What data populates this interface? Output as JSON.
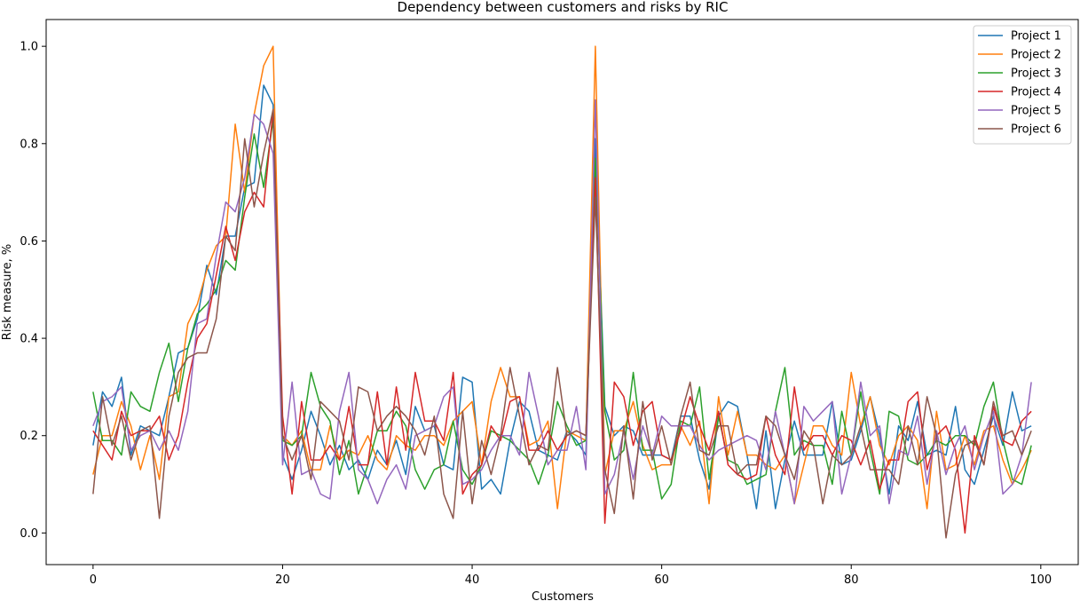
{
  "chart_data": {
    "type": "line",
    "title": "Dependency between customers and risks by RIC",
    "xlabel": "Customers",
    "ylabel": "Risk measure, %",
    "xlim": [
      -4.95,
      103.95
    ],
    "ylim": [
      -0.065,
      1.055
    ],
    "xticks": [
      0,
      20,
      40,
      60,
      80,
      100
    ],
    "yticks": [
      0.0,
      0.2,
      0.4,
      0.6,
      0.8,
      1.0
    ],
    "xtick_labels": [
      "0",
      "20",
      "40",
      "60",
      "80",
      "100"
    ],
    "ytick_labels": [
      "0.0",
      "0.2",
      "0.4",
      "0.6",
      "0.8",
      "1.0"
    ],
    "grid": false,
    "legend_position": "top-right",
    "series": [
      {
        "name": "Project 1",
        "color": "#1f77b4",
        "values": [
          0.18,
          0.29,
          0.26,
          0.32,
          0.16,
          0.22,
          0.21,
          0.2,
          0.28,
          0.37,
          0.38,
          0.44,
          0.55,
          0.49,
          0.61,
          0.61,
          0.71,
          0.72,
          0.92,
          0.88,
          0.16,
          0.11,
          0.17,
          0.25,
          0.2,
          0.14,
          0.18,
          0.13,
          0.15,
          0.11,
          0.17,
          0.14,
          0.19,
          0.12,
          0.26,
          0.21,
          0.22,
          0.14,
          0.13,
          0.32,
          0.31,
          0.09,
          0.11,
          0.08,
          0.19,
          0.27,
          0.25,
          0.17,
          0.16,
          0.15,
          0.21,
          0.19,
          0.16,
          0.81,
          0.26,
          0.2,
          0.22,
          0.21,
          0.16,
          0.16,
          0.16,
          0.15,
          0.24,
          0.24,
          0.15,
          0.09,
          0.24,
          0.27,
          0.26,
          0.16,
          0.05,
          0.21,
          0.05,
          0.15,
          0.23,
          0.16,
          0.16,
          0.16,
          0.27,
          0.14,
          0.15,
          0.21,
          0.28,
          0.2,
          0.08,
          0.22,
          0.19,
          0.27,
          0.16,
          0.17,
          0.16,
          0.26,
          0.13,
          0.1,
          0.17,
          0.24,
          0.18,
          0.29,
          0.21,
          0.22
        ]
      },
      {
        "name": "Project 2",
        "color": "#ff7f0e",
        "values": [
          0.12,
          0.2,
          0.2,
          0.27,
          0.22,
          0.13,
          0.2,
          0.11,
          0.28,
          0.29,
          0.43,
          0.47,
          0.54,
          0.59,
          0.61,
          0.84,
          0.7,
          0.86,
          0.96,
          1.0,
          0.2,
          0.18,
          0.21,
          0.13,
          0.13,
          0.22,
          0.15,
          0.17,
          0.16,
          0.2,
          0.15,
          0.13,
          0.2,
          0.18,
          0.17,
          0.2,
          0.2,
          0.18,
          0.23,
          0.25,
          0.27,
          0.14,
          0.27,
          0.34,
          0.28,
          0.28,
          0.18,
          0.19,
          0.23,
          0.05,
          0.21,
          0.2,
          0.19,
          1.0,
          0.12,
          0.21,
          0.21,
          0.27,
          0.18,
          0.13,
          0.14,
          0.14,
          0.22,
          0.18,
          0.23,
          0.06,
          0.28,
          0.16,
          0.25,
          0.16,
          0.16,
          0.14,
          0.13,
          0.16,
          0.06,
          0.14,
          0.22,
          0.22,
          0.18,
          0.16,
          0.33,
          0.22,
          0.28,
          0.18,
          0.14,
          0.2,
          0.22,
          0.19,
          0.05,
          0.25,
          0.13,
          0.14,
          0.2,
          0.14,
          0.21,
          0.22,
          0.15,
          0.1,
          0.13,
          0.17
        ]
      },
      {
        "name": "Project 3",
        "color": "#2ca02c",
        "values": [
          0.29,
          0.19,
          0.19,
          0.16,
          0.29,
          0.26,
          0.25,
          0.33,
          0.39,
          0.27,
          0.38,
          0.45,
          0.47,
          0.5,
          0.56,
          0.54,
          0.69,
          0.82,
          0.71,
          0.85,
          0.19,
          0.18,
          0.2,
          0.33,
          0.26,
          0.23,
          0.12,
          0.19,
          0.08,
          0.14,
          0.21,
          0.21,
          0.25,
          0.22,
          0.13,
          0.09,
          0.13,
          0.14,
          0.23,
          0.13,
          0.1,
          0.14,
          0.21,
          0.2,
          0.19,
          0.17,
          0.15,
          0.1,
          0.16,
          0.27,
          0.22,
          0.18,
          0.19,
          0.77,
          0.25,
          0.15,
          0.17,
          0.33,
          0.17,
          0.17,
          0.07,
          0.1,
          0.23,
          0.22,
          0.3,
          0.11,
          0.24,
          0.15,
          0.14,
          0.1,
          0.11,
          0.12,
          0.25,
          0.34,
          0.16,
          0.19,
          0.18,
          0.18,
          0.1,
          0.25,
          0.16,
          0.29,
          0.17,
          0.08,
          0.25,
          0.24,
          0.15,
          0.14,
          0.16,
          0.19,
          0.18,
          0.2,
          0.2,
          0.18,
          0.26,
          0.31,
          0.19,
          0.11,
          0.1,
          0.18
        ]
      },
      {
        "name": "Project 4",
        "color": "#d62728",
        "values": [
          0.21,
          0.18,
          0.15,
          0.25,
          0.2,
          0.21,
          0.21,
          0.24,
          0.15,
          0.2,
          0.31,
          0.4,
          0.43,
          0.53,
          0.63,
          0.56,
          0.66,
          0.7,
          0.67,
          0.87,
          0.24,
          0.08,
          0.27,
          0.15,
          0.15,
          0.18,
          0.15,
          0.26,
          0.14,
          0.14,
          0.29,
          0.14,
          0.3,
          0.17,
          0.33,
          0.23,
          0.23,
          0.19,
          0.33,
          0.08,
          0.12,
          0.14,
          0.22,
          0.19,
          0.27,
          0.28,
          0.17,
          0.17,
          0.21,
          0.17,
          0.2,
          0.21,
          0.2,
          0.73,
          0.02,
          0.31,
          0.28,
          0.18,
          0.25,
          0.27,
          0.16,
          0.15,
          0.21,
          0.28,
          0.22,
          0.17,
          0.25,
          0.14,
          0.12,
          0.11,
          0.12,
          0.24,
          0.16,
          0.12,
          0.3,
          0.17,
          0.2,
          0.2,
          0.16,
          0.2,
          0.19,
          0.14,
          0.19,
          0.09,
          0.15,
          0.15,
          0.27,
          0.29,
          0.13,
          0.2,
          0.22,
          0.17,
          0.0,
          0.2,
          0.14,
          0.26,
          0.19,
          0.18,
          0.23,
          0.25
        ]
      },
      {
        "name": "Project 5",
        "color": "#9467bd",
        "values": [
          0.22,
          0.27,
          0.28,
          0.3,
          0.17,
          0.2,
          0.21,
          0.17,
          0.21,
          0.17,
          0.25,
          0.43,
          0.44,
          0.57,
          0.68,
          0.66,
          0.73,
          0.86,
          0.84,
          0.78,
          0.14,
          0.31,
          0.12,
          0.13,
          0.08,
          0.07,
          0.25,
          0.33,
          0.13,
          0.11,
          0.06,
          0.11,
          0.14,
          0.09,
          0.2,
          0.21,
          0.22,
          0.28,
          0.3,
          0.1,
          0.11,
          0.13,
          0.17,
          0.2,
          0.2,
          0.16,
          0.33,
          0.24,
          0.14,
          0.17,
          0.17,
          0.26,
          0.13,
          0.89,
          0.08,
          0.12,
          0.21,
          0.11,
          0.22,
          0.16,
          0.24,
          0.22,
          0.22,
          0.22,
          0.18,
          0.15,
          0.17,
          0.18,
          0.19,
          0.2,
          0.19,
          0.13,
          0.25,
          0.16,
          0.06,
          0.26,
          0.23,
          0.25,
          0.27,
          0.08,
          0.16,
          0.31,
          0.2,
          0.22,
          0.06,
          0.17,
          0.16,
          0.24,
          0.1,
          0.21,
          0.12,
          0.18,
          0.22,
          0.13,
          0.2,
          0.25,
          0.08,
          0.1,
          0.16,
          0.31
        ]
      },
      {
        "name": "Project 6",
        "color": "#8c564b",
        "values": [
          0.08,
          0.28,
          0.18,
          0.24,
          0.15,
          0.21,
          0.22,
          0.03,
          0.24,
          0.33,
          0.36,
          0.37,
          0.37,
          0.44,
          0.61,
          0.58,
          0.81,
          0.67,
          0.78,
          0.87,
          0.2,
          0.15,
          0.2,
          0.11,
          0.27,
          0.25,
          0.23,
          0.15,
          0.3,
          0.29,
          0.21,
          0.24,
          0.26,
          0.24,
          0.21,
          0.16,
          0.24,
          0.08,
          0.03,
          0.25,
          0.06,
          0.19,
          0.12,
          0.2,
          0.34,
          0.24,
          0.14,
          0.18,
          0.17,
          0.34,
          0.2,
          0.21,
          0.2,
          0.69,
          0.13,
          0.04,
          0.22,
          0.07,
          0.27,
          0.15,
          0.22,
          0.14,
          0.24,
          0.31,
          0.17,
          0.16,
          0.22,
          0.22,
          0.12,
          0.14,
          0.14,
          0.24,
          0.22,
          0.16,
          0.11,
          0.21,
          0.18,
          0.06,
          0.16,
          0.14,
          0.16,
          0.22,
          0.13,
          0.13,
          0.13,
          0.1,
          0.22,
          0.14,
          0.28,
          0.2,
          -0.01,
          0.12,
          0.18,
          0.19,
          0.14,
          0.27,
          0.2,
          0.21,
          0.16,
          0.21
        ]
      }
    ]
  }
}
